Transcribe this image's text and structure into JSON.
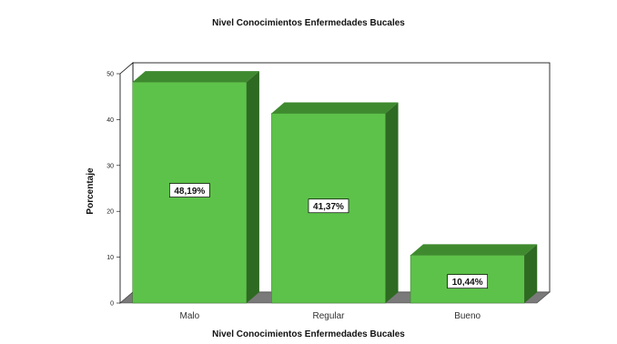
{
  "chart_data": {
    "type": "bar",
    "title": "Nivel Conocimientos Enfermedades Bucales",
    "xlabel": "Nivel Conocimientos Enfermedades Bucales",
    "ylabel": "Porcentaje",
    "categories": [
      "Malo",
      "Regular",
      "Bueno"
    ],
    "values": [
      48.19,
      41.37,
      10.44
    ],
    "data_labels": [
      "48,19%",
      "41,37%",
      "10,44%"
    ],
    "ylim": [
      0,
      50
    ],
    "yticks": [
      "0",
      "10",
      "20",
      "30",
      "40",
      "50"
    ],
    "grid": false,
    "legend": "none",
    "three_d": true,
    "colors": {
      "bar_front": "#5dc24a",
      "bar_top": "#3f8a2f",
      "bar_side": "#2e6a22",
      "wall": "#ffffff",
      "floor": "#7a7a7a"
    }
  }
}
